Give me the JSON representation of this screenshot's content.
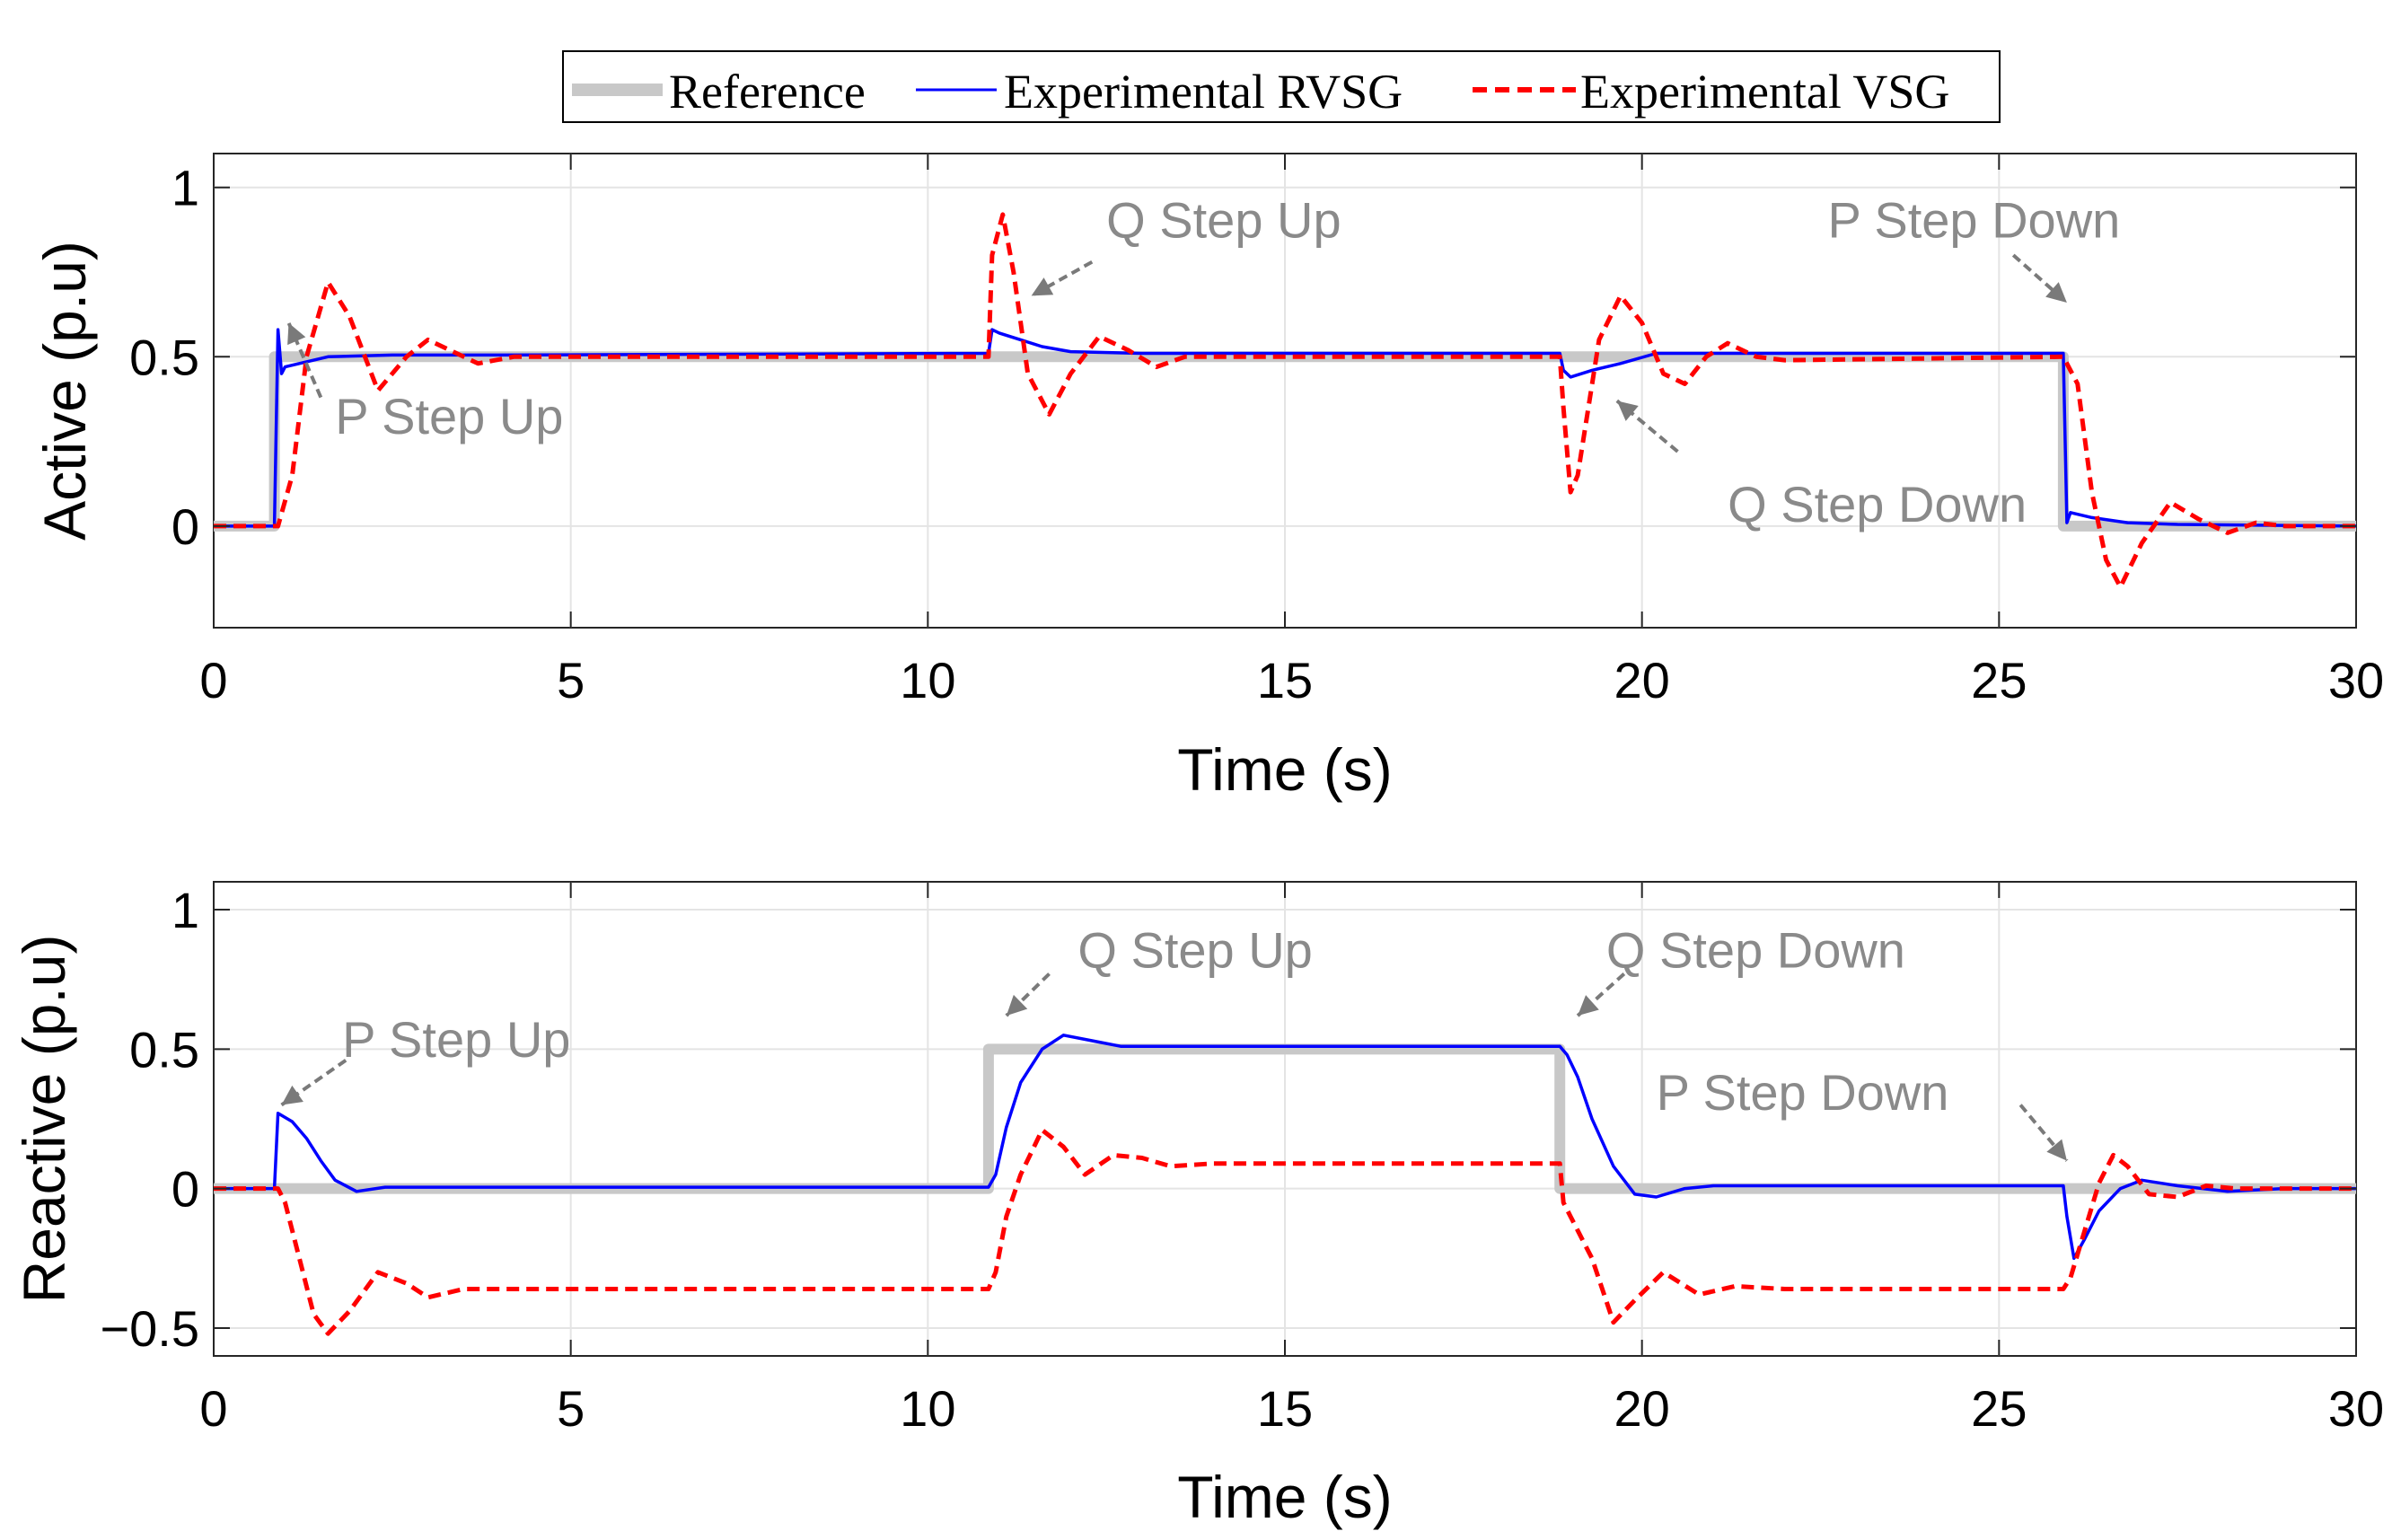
{
  "chart_data": [
    {
      "type": "line",
      "title": "",
      "xlabel": "Time (s)",
      "ylabel": "Active (p.u)",
      "xlim": [
        0,
        30
      ],
      "ylim": [
        -0.3,
        1.1
      ],
      "xticks": [
        0,
        5,
        10,
        15,
        20,
        25,
        30
      ],
      "yticks": [
        0,
        0.5,
        1
      ],
      "xtick_labels": [
        "0",
        "5",
        "10",
        "15",
        "20",
        "25",
        "30"
      ],
      "ytick_labels": [
        "0",
        "0.5",
        "1"
      ],
      "grid": true,
      "series": [
        {
          "name": "Reference",
          "color": "#c8c8c8",
          "style": "solid-thick",
          "x": [
            0,
            0.85,
            0.85,
            25.9,
            25.9,
            30
          ],
          "y": [
            0,
            0,
            0.5,
            0.5,
            0,
            0
          ]
        },
        {
          "name": "Experimental RVSG",
          "color": "#0000ff",
          "style": "solid",
          "x": [
            0,
            0.85,
            0.9,
            0.95,
            1.0,
            1.2,
            1.6,
            2.5,
            4,
            10.85,
            10.9,
            11.0,
            11.3,
            11.6,
            12.0,
            13,
            18.85,
            18.9,
            19.0,
            19.3,
            19.7,
            20.2,
            21,
            25.9,
            25.95,
            26.0,
            26.3,
            26.8,
            27.5,
            30
          ],
          "y": [
            0,
            0,
            0.58,
            0.45,
            0.47,
            0.48,
            0.5,
            0.505,
            0.505,
            0.51,
            0.58,
            0.57,
            0.55,
            0.53,
            0.515,
            0.51,
            0.51,
            0.46,
            0.44,
            0.46,
            0.48,
            0.51,
            0.51,
            0.51,
            0.01,
            0.04,
            0.025,
            0.01,
            0.005,
            0
          ]
        },
        {
          "name": "Experimental VSG",
          "color": "#ff0000",
          "style": "dashed",
          "x": [
            0,
            0.9,
            1.1,
            1.3,
            1.6,
            1.9,
            2.3,
            2.7,
            3.0,
            3.3,
            3.7,
            4.2,
            5,
            10.85,
            10.9,
            11.05,
            11.2,
            11.4,
            11.7,
            12.0,
            12.4,
            12.8,
            13.2,
            13.6,
            14,
            18.85,
            18.9,
            19.0,
            19.1,
            19.4,
            19.7,
            20.0,
            20.3,
            20.6,
            20.9,
            21.2,
            21.6,
            22,
            25.9,
            26.1,
            26.3,
            26.5,
            26.7,
            27.0,
            27.4,
            27.8,
            28.2,
            28.6,
            29,
            30
          ],
          "y": [
            0,
            0,
            0.15,
            0.5,
            0.72,
            0.62,
            0.4,
            0.5,
            0.55,
            0.52,
            0.48,
            0.5,
            0.5,
            0.5,
            0.8,
            0.92,
            0.75,
            0.45,
            0.33,
            0.45,
            0.56,
            0.52,
            0.47,
            0.5,
            0.5,
            0.5,
            0.35,
            0.1,
            0.15,
            0.55,
            0.68,
            0.6,
            0.45,
            0.42,
            0.5,
            0.54,
            0.5,
            0.49,
            0.5,
            0.42,
            0.1,
            -0.1,
            -0.18,
            -0.05,
            0.07,
            0.02,
            -0.02,
            0.01,
            0,
            0
          ]
        }
      ],
      "annotations": [
        {
          "text": "P Step Up",
          "x": 1.6,
          "y": 0.32
        },
        {
          "text": "Q Step Up",
          "x": 12.3,
          "y": 0.9
        },
        {
          "text": "P Step Down",
          "x": 23.2,
          "y": 0.9
        },
        {
          "text": "Q Step Down",
          "x": 22.6,
          "y": 0.1
        }
      ]
    },
    {
      "type": "line",
      "title": "",
      "xlabel": "Time (s)",
      "ylabel": "Reactive (p.u)",
      "xlim": [
        0,
        30
      ],
      "ylim": [
        -0.6,
        1.1
      ],
      "xticks": [
        0,
        5,
        10,
        15,
        20,
        25,
        30
      ],
      "yticks": [
        -0.5,
        0,
        0.5,
        1
      ],
      "xtick_labels": [
        "0",
        "5",
        "10",
        "15",
        "20",
        "25",
        "30"
      ],
      "ytick_labels": [
        "−0.5",
        "0",
        "0.5",
        "1"
      ],
      "grid": true,
      "series": [
        {
          "name": "Reference",
          "color": "#c8c8c8",
          "style": "solid-thick",
          "x": [
            0,
            10.85,
            10.85,
            18.85,
            18.85,
            30
          ],
          "y": [
            0,
            0,
            0.5,
            0.5,
            0,
            0
          ]
        },
        {
          "name": "Experimental RVSG",
          "color": "#0000ff",
          "style": "solid",
          "x": [
            0,
            0.85,
            0.9,
            1.1,
            1.3,
            1.5,
            1.7,
            2.0,
            2.4,
            3,
            10.85,
            10.95,
            11.1,
            11.3,
            11.6,
            11.9,
            12.3,
            12.7,
            13.2,
            14,
            18.85,
            18.95,
            19.1,
            19.3,
            19.6,
            19.9,
            20.2,
            20.6,
            21,
            25.9,
            25.95,
            26.05,
            26.2,
            26.4,
            26.7,
            27.0,
            27.5,
            28.2,
            29,
            30
          ],
          "y": [
            0,
            0,
            0.27,
            0.24,
            0.18,
            0.1,
            0.03,
            -0.01,
            0.005,
            0.005,
            0.005,
            0.05,
            0.22,
            0.38,
            0.5,
            0.55,
            0.53,
            0.51,
            0.51,
            0.51,
            0.51,
            0.48,
            0.4,
            0.25,
            0.08,
            -0.02,
            -0.03,
            0.0,
            0.01,
            0.01,
            -0.1,
            -0.25,
            -0.18,
            -0.08,
            0.0,
            0.03,
            0.01,
            -0.01,
            0.0,
            0
          ]
        },
        {
          "name": "Experimental VSG",
          "color": "#ff0000",
          "style": "dashed",
          "x": [
            0,
            0.9,
            1.0,
            1.2,
            1.4,
            1.6,
            1.9,
            2.3,
            2.7,
            3.0,
            3.5,
            4,
            10.85,
            10.95,
            11.1,
            11.3,
            11.6,
            11.9,
            12.2,
            12.6,
            13.0,
            13.4,
            14,
            18.85,
            18.9,
            19.0,
            19.3,
            19.6,
            19.9,
            20.3,
            20.8,
            21.3,
            22,
            25.9,
            26.0,
            26.2,
            26.4,
            26.6,
            26.8,
            27.1,
            27.5,
            27.9,
            28.3,
            29,
            30
          ],
          "y": [
            0,
            0,
            -0.05,
            -0.25,
            -0.45,
            -0.52,
            -0.44,
            -0.3,
            -0.34,
            -0.39,
            -0.36,
            -0.36,
            -0.36,
            -0.3,
            -0.1,
            0.05,
            0.21,
            0.15,
            0.05,
            0.12,
            0.11,
            0.08,
            0.09,
            0.09,
            -0.05,
            -0.1,
            -0.25,
            -0.48,
            -0.4,
            -0.3,
            -0.38,
            -0.35,
            -0.36,
            -0.36,
            -0.32,
            -0.15,
            0.02,
            0.12,
            0.08,
            -0.02,
            -0.03,
            0.01,
            0.0,
            0.0,
            0
          ]
        }
      ],
      "annotations": [
        {
          "text": "P Step Up",
          "x": 3.5,
          "y": 0.54
        },
        {
          "text": "Q Step Up",
          "x": 13.8,
          "y": 0.86
        },
        {
          "text": "Q Step Down",
          "x": 21.8,
          "y": 0.86
        },
        {
          "text": "P Step Down",
          "x": 22.8,
          "y": 0.34
        }
      ]
    }
  ],
  "legend": {
    "placement": "top-center",
    "entries": [
      {
        "label": "Reference",
        "color": "#c8c8c8",
        "style": "solid-thick"
      },
      {
        "label": "Experimental RVSG",
        "color": "#0000ff",
        "style": "solid"
      },
      {
        "label": "Experimental VSG",
        "color": "#ff0000",
        "style": "dashed"
      }
    ]
  }
}
